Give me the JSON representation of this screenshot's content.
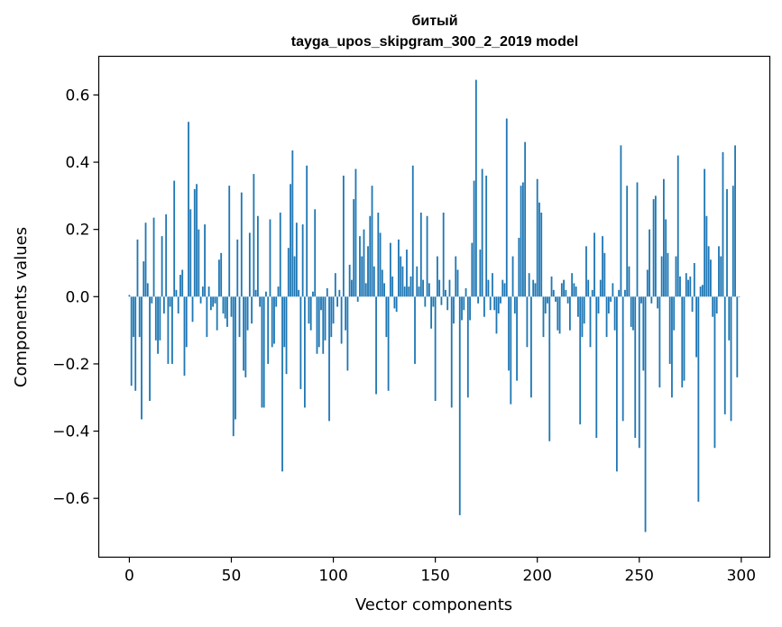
{
  "chart_data": {
    "type": "bar",
    "title_line1": "битый",
    "title_line2": "tayga_upos_skipgram_300_2_2019 model",
    "xlabel": "Vector components",
    "ylabel": "Components values",
    "xlim": [
      -15,
      314
    ],
    "ylim": [
      -0.775,
      0.715
    ],
    "xticks": [
      0,
      50,
      100,
      150,
      200,
      250,
      300
    ],
    "xtick_labels": [
      "0",
      "50",
      "100",
      "150",
      "200",
      "250",
      "300"
    ],
    "yticks": [
      -0.6,
      -0.4,
      -0.2,
      0.0,
      0.2,
      0.4,
      0.6
    ],
    "ytick_labels": [
      "−0.6",
      "−0.4",
      "−0.2",
      "0.0",
      "0.2",
      "0.4",
      "0.6"
    ],
    "bar_color": "#1f77b4",
    "grid": false,
    "values": [
      0.005,
      -0.265,
      -0.12,
      -0.28,
      0.17,
      -0.12,
      -0.365,
      0.105,
      0.22,
      0.04,
      -0.31,
      -0.02,
      0.235,
      -0.13,
      -0.17,
      -0.13,
      0.18,
      -0.05,
      0.245,
      -0.2,
      -0.03,
      -0.2,
      0.345,
      0.02,
      -0.05,
      0.065,
      0.08,
      -0.235,
      -0.15,
      0.52,
      0.26,
      -0.075,
      0.32,
      0.335,
      0.2,
      -0.02,
      0.03,
      0.215,
      -0.12,
      0.03,
      -0.04,
      -0.03,
      -0.02,
      -0.1,
      0.11,
      0.13,
      -0.05,
      -0.065,
      -0.09,
      0.33,
      -0.06,
      -0.415,
      -0.365,
      0.17,
      -0.12,
      0.31,
      -0.22,
      -0.24,
      -0.1,
      0.19,
      -0.08,
      0.365,
      0.02,
      0.24,
      -0.03,
      -0.33,
      -0.33,
      0.015,
      -0.2,
      0.23,
      -0.15,
      -0.14,
      -0.03,
      0.03,
      0.25,
      -0.52,
      -0.15,
      -0.23,
      0.145,
      0.335,
      0.435,
      0.12,
      0.22,
      0.02,
      -0.275,
      0.215,
      -0.33,
      0.39,
      -0.08,
      -0.1,
      0.015,
      0.26,
      -0.17,
      -0.15,
      -0.04,
      -0.17,
      -0.13,
      0.025,
      -0.37,
      -0.12,
      -0.08,
      0.07,
      -0.03,
      0.02,
      -0.14,
      0.36,
      -0.1,
      -0.22,
      0.095,
      0.05,
      0.29,
      0.38,
      -0.015,
      0.18,
      0.12,
      0.2,
      0.04,
      0.15,
      0.24,
      0.33,
      0.09,
      -0.29,
      0.25,
      0.19,
      0.08,
      0.04,
      -0.12,
      -0.28,
      0.16,
      0.06,
      -0.035,
      -0.045,
      0.17,
      0.12,
      0.09,
      0.03,
      0.14,
      0.03,
      0.06,
      0.39,
      -0.2,
      0.09,
      0.03,
      0.25,
      0.05,
      -0.03,
      0.24,
      0.04,
      -0.095,
      -0.03,
      -0.31,
      0.12,
      0.05,
      -0.025,
      0.25,
      0.02,
      -0.04,
      0.05,
      -0.33,
      -0.08,
      0.12,
      0.08,
      -0.65,
      -0.07,
      -0.04,
      0.025,
      -0.3,
      -0.07,
      0.16,
      0.345,
      0.645,
      -0.02,
      0.14,
      0.38,
      -0.06,
      0.36,
      0.05,
      -0.04,
      0.07,
      -0.04,
      -0.11,
      -0.05,
      -0.02,
      0.05,
      0.04,
      0.53,
      -0.22,
      -0.32,
      0.12,
      -0.05,
      -0.25,
      0.175,
      0.33,
      0.34,
      0.46,
      -0.15,
      0.07,
      -0.3,
      0.05,
      0.04,
      0.35,
      0.28,
      0.25,
      -0.12,
      -0.05,
      -0.02,
      -0.43,
      0.06,
      0.02,
      -0.015,
      -0.1,
      -0.11,
      0.04,
      0.05,
      0.02,
      -0.02,
      -0.1,
      0.07,
      0.04,
      0.03,
      -0.06,
      -0.38,
      -0.12,
      -0.08,
      0.15,
      0.05,
      -0.15,
      0.02,
      0.19,
      -0.42,
      -0.05,
      0.05,
      0.18,
      0.13,
      -0.12,
      -0.05,
      -0.015,
      0.04,
      -0.1,
      -0.52,
      0.02,
      0.45,
      -0.37,
      0.02,
      0.33,
      0.09,
      -0.09,
      -0.1,
      -0.42,
      0.34,
      -0.45,
      -0.02,
      -0.22,
      -0.7,
      0.08,
      0.2,
      -0.02,
      0.29,
      0.3,
      -0.035,
      -0.27,
      0.12,
      0.35,
      0.23,
      0.13,
      -0.2,
      -0.3,
      -0.1,
      0.12,
      0.42,
      0.06,
      -0.27,
      -0.25,
      0.07,
      0.05,
      0.06,
      -0.045,
      0.1,
      -0.18,
      -0.61,
      0.03,
      0.035,
      0.38,
      0.24,
      0.15,
      0.11,
      -0.06,
      -0.45,
      -0.05,
      0.15,
      0.12,
      0.43,
      -0.35,
      0.32,
      -0.13,
      -0.37,
      0.33,
      0.45,
      -0.24,
      0.0
    ]
  }
}
